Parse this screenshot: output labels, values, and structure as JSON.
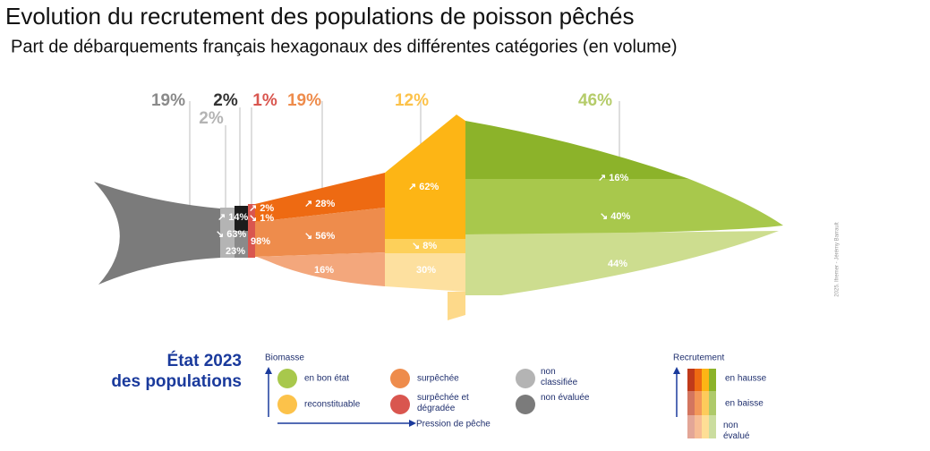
{
  "header": {
    "title": "Evolution du recrutement des populations de poisson pêchés",
    "subtitle": "Part de débarquements français hexagonaux des différentes catégories (en volume)"
  },
  "fish": {
    "shares": [
      "19%",
      "2%",
      "2%",
      "1%",
      "19%",
      "12%",
      "46%"
    ],
    "segments": [
      "↗ 14%",
      "↘ 63%",
      "23%",
      "↗ 2%",
      "↘ 1%",
      "98%",
      "↗ 28%",
      "↘ 56%",
      "16%",
      "↗ 62%",
      "↘ 8%",
      "30%",
      "↗ 16%",
      "↘ 40%",
      "44%"
    ],
    "credit": "2025. Ifremer - Jérémy Barrault"
  },
  "legend": {
    "title": [
      "État 2023",
      "des populations"
    ],
    "biomass_title": "Biomasse",
    "items": [
      "en bon état",
      "surpêchée",
      "non classifiée",
      "reconstituable",
      "surpêchée et dégradée",
      "non évaluée"
    ],
    "pressure": "Pression de pêche",
    "recruitment_title": "Recrutement",
    "recruitment": [
      "en hausse",
      "en baisse",
      "non évalué"
    ]
  }
}
